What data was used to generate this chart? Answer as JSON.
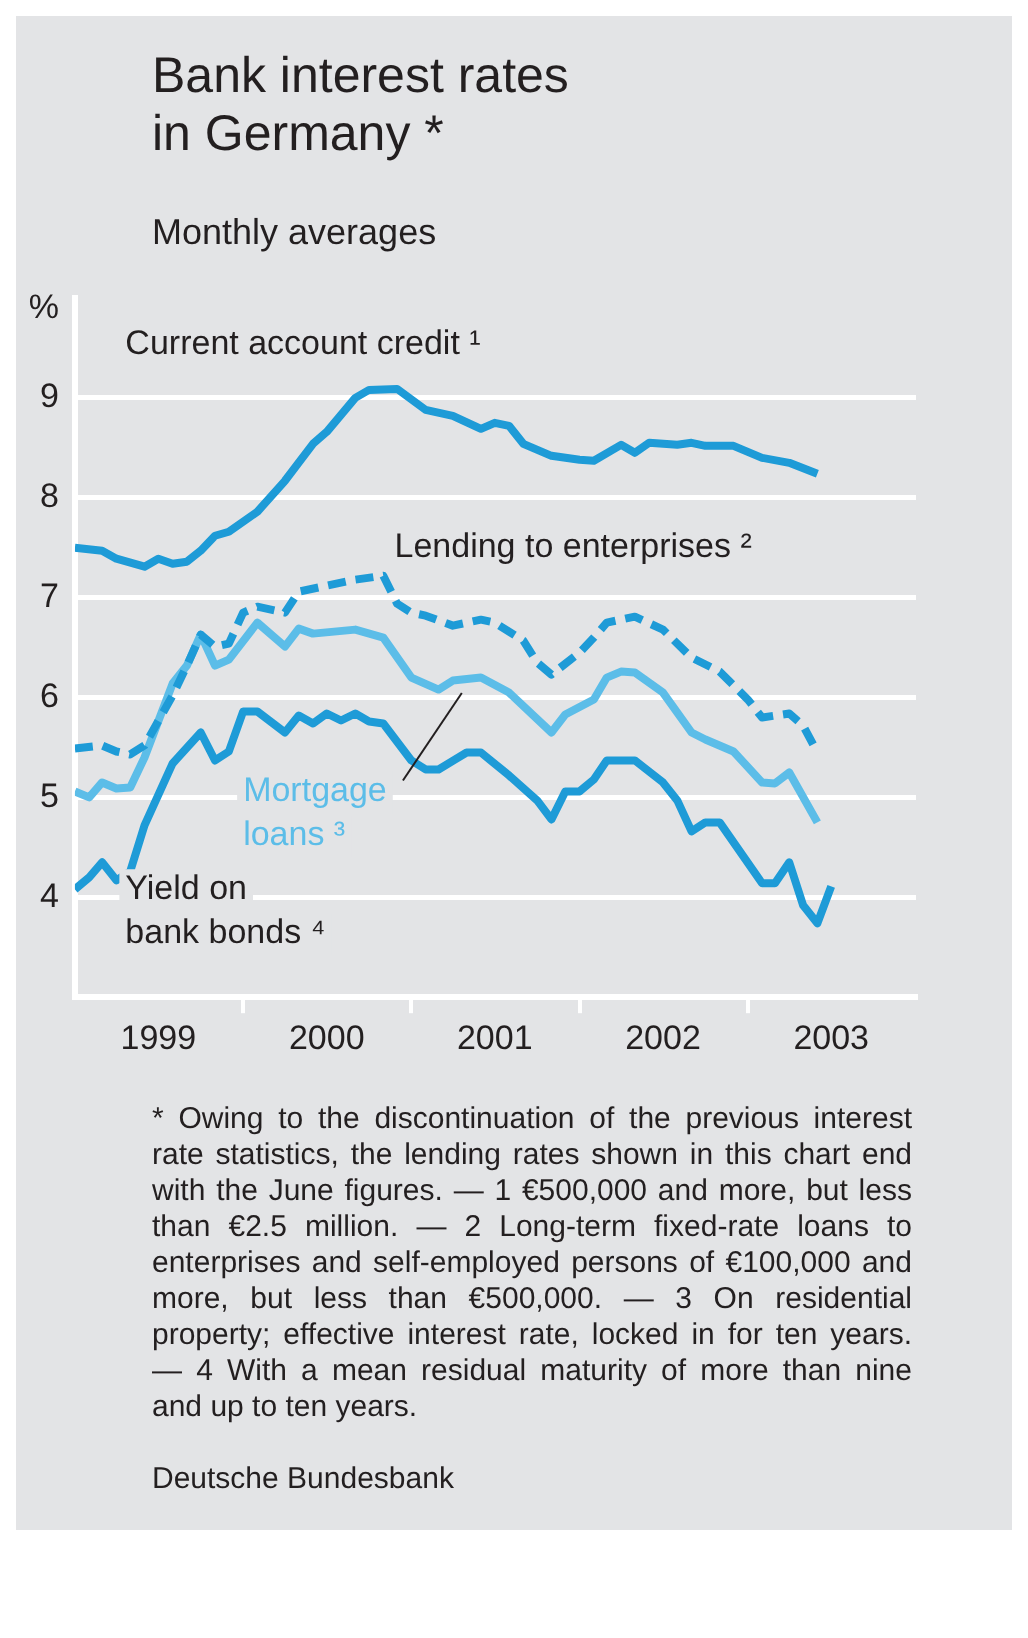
{
  "chart_data": {
    "type": "line",
    "title": "Bank interest rates in Germany *",
    "subtitle": "Monthly averages",
    "ylabel": "%",
    "xlim": [
      "1999-01",
      "2004-01"
    ],
    "xticks": [
      {
        "value": "1999-07",
        "label": "1999"
      },
      {
        "value": "2000-07",
        "label": "2000"
      },
      {
        "value": "2001-07",
        "label": "2001"
      },
      {
        "value": "2002-07",
        "label": "2002"
      },
      {
        "value": "2003-07",
        "label": "2003"
      },
      {
        "value": "2000-01",
        "label": null
      },
      {
        "value": "2001-01",
        "label": null
      },
      {
        "value": "2002-01",
        "label": null
      },
      {
        "value": "2003-01",
        "label": null
      }
    ],
    "ylim": [
      3,
      10
    ],
    "yticks": [
      4,
      5,
      6,
      7,
      8,
      9
    ],
    "grid": "y",
    "legend": false,
    "series": [
      {
        "name": "Current account credit ¹",
        "color": "#1e9bd7",
        "line_style": "solid",
        "x": [
          "1999-01",
          "1999-03",
          "1999-04",
          "1999-06",
          "1999-07",
          "1999-08",
          "1999-09",
          "1999-10",
          "1999-11",
          "1999-12",
          "2000-02",
          "2000-04",
          "2000-06",
          "2000-07",
          "2000-09",
          "2000-10",
          "2000-12",
          "2001-02",
          "2001-04",
          "2001-06",
          "2001-07",
          "2001-08",
          "2001-09",
          "2001-11",
          "2002-01",
          "2002-02",
          "2002-04",
          "2002-05",
          "2002-06",
          "2002-08",
          "2002-09",
          "2002-10",
          "2002-12",
          "2003-02",
          "2003-04",
          "2003-06"
        ],
        "values": [
          7.5,
          7.47,
          7.39,
          7.31,
          7.39,
          7.34,
          7.36,
          7.47,
          7.62,
          7.66,
          7.86,
          8.17,
          8.54,
          8.66,
          9.0,
          9.08,
          9.09,
          8.88,
          8.82,
          8.69,
          8.75,
          8.72,
          8.54,
          8.42,
          8.38,
          8.37,
          8.53,
          8.45,
          8.55,
          8.53,
          8.55,
          8.52,
          8.52,
          8.4,
          8.35,
          8.24
        ]
      },
      {
        "name": "Lending to enterprises ²",
        "color": "#1e9bd7",
        "line_style": "dashed",
        "x": [
          "1999-01",
          "1999-03",
          "1999-04",
          "1999-05",
          "1999-06",
          "1999-08",
          "1999-09",
          "1999-10",
          "1999-11",
          "1999-12",
          "2000-01",
          "2000-02",
          "2000-04",
          "2000-05",
          "2000-07",
          "2000-09",
          "2000-11",
          "2000-12",
          "2001-01",
          "2001-02",
          "2001-04",
          "2001-06",
          "2001-07",
          "2001-09",
          "2001-10",
          "2001-11",
          "2002-01",
          "2002-02",
          "2002-03",
          "2002-05",
          "2002-07",
          "2002-09",
          "2002-11",
          "2003-01",
          "2003-02",
          "2003-04",
          "2003-05",
          "2003-06"
        ],
        "values": [
          5.49,
          5.52,
          5.46,
          5.43,
          5.52,
          6.02,
          6.32,
          6.63,
          6.51,
          6.54,
          6.85,
          6.91,
          6.85,
          7.06,
          7.12,
          7.18,
          7.22,
          6.94,
          6.85,
          6.82,
          6.72,
          6.78,
          6.75,
          6.57,
          6.35,
          6.23,
          6.45,
          6.6,
          6.75,
          6.81,
          6.68,
          6.4,
          6.26,
          5.98,
          5.8,
          5.84,
          5.72,
          5.45
        ]
      },
      {
        "name": "Mortgage loans ³",
        "color": "#5cbde8",
        "line_style": "solid",
        "x": [
          "1999-01",
          "1999-02",
          "1999-03",
          "1999-04",
          "1999-05",
          "1999-06",
          "1999-08",
          "1999-09",
          "1999-10",
          "1999-11",
          "1999-12",
          "2000-02",
          "2000-04",
          "2000-05",
          "2000-06",
          "2000-09",
          "2000-11",
          "2001-01",
          "2001-03",
          "2001-04",
          "2001-06",
          "2001-08",
          "2001-11",
          "2001-12",
          "2002-02",
          "2002-03",
          "2002-04",
          "2002-05",
          "2002-07",
          "2002-09",
          "2002-10",
          "2002-12",
          "2003-02",
          "2003-03",
          "2003-04",
          "2003-06"
        ],
        "values": [
          5.06,
          5.0,
          5.15,
          5.09,
          5.1,
          5.4,
          6.14,
          6.32,
          6.63,
          6.32,
          6.38,
          6.75,
          6.51,
          6.69,
          6.64,
          6.68,
          6.6,
          6.2,
          6.08,
          6.17,
          6.2,
          6.05,
          5.65,
          5.83,
          5.98,
          6.2,
          6.26,
          6.25,
          6.05,
          5.65,
          5.58,
          5.46,
          5.15,
          5.14,
          5.25,
          4.75
        ]
      },
      {
        "name": "Yield on bank bonds ⁴",
        "color": "#1e9bd7",
        "line_style": "solid",
        "x": [
          "1999-01",
          "1999-02",
          "1999-03",
          "1999-04",
          "1999-05",
          "1999-06",
          "1999-08",
          "1999-10",
          "1999-11",
          "1999-12",
          "2000-01",
          "2000-02",
          "2000-04",
          "2000-05",
          "2000-06",
          "2000-07",
          "2000-08",
          "2000-09",
          "2000-10",
          "2000-11",
          "2001-01",
          "2001-02",
          "2001-03",
          "2001-05",
          "2001-06",
          "2001-08",
          "2001-10",
          "2001-11",
          "2001-12",
          "2002-01",
          "2002-02",
          "2002-03",
          "2002-05",
          "2002-07",
          "2002-08",
          "2002-09",
          "2002-10",
          "2002-11",
          "2003-02",
          "2003-03",
          "2003-04",
          "2003-05",
          "2003-06",
          "2003-07"
        ],
        "values": [
          4.08,
          4.2,
          4.35,
          4.17,
          4.26,
          4.72,
          5.34,
          5.65,
          5.37,
          5.46,
          5.86,
          5.86,
          5.65,
          5.82,
          5.74,
          5.84,
          5.77,
          5.84,
          5.76,
          5.74,
          5.37,
          5.28,
          5.28,
          5.45,
          5.45,
          5.22,
          4.97,
          4.78,
          5.06,
          5.06,
          5.18,
          5.37,
          5.37,
          5.15,
          4.97,
          4.66,
          4.75,
          4.75,
          4.14,
          4.14,
          4.35,
          3.92,
          3.74,
          4.11
        ]
      }
    ],
    "annotations": [
      "* Owing to the discontinuation of the previous interest rate statistics, the lending rates shown in this chart end with the June figures. — 1 €500,000 and more, but less than €2.5 million. — 2 Long-term fixed-rate loans to enterprises and self-employed persons of €100,000 and more, but less than €500,000. — 3 On residential property; effective interest rate, locked in for ten years. — 4 With a mean residual maturity of more than nine and up to ten years.",
      "Deutsche Bundesbank"
    ]
  }
}
